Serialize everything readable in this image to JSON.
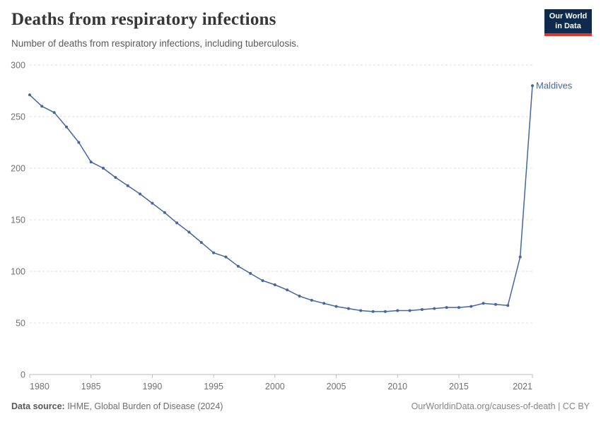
{
  "header": {
    "title": "Deaths from respiratory infections",
    "subtitle": "Number of deaths from respiratory infections, including tuberculosis.",
    "logo": {
      "line1": "Our World",
      "line2": "in Data"
    }
  },
  "chart_data": {
    "type": "line",
    "title": "Deaths from respiratory infections",
    "xlabel": "",
    "ylabel": "",
    "x": [
      1980,
      1981,
      1982,
      1983,
      1984,
      1985,
      1986,
      1987,
      1988,
      1989,
      1990,
      1991,
      1992,
      1993,
      1994,
      1995,
      1996,
      1997,
      1998,
      1999,
      2000,
      2001,
      2002,
      2003,
      2004,
      2005,
      2006,
      2007,
      2008,
      2009,
      2010,
      2011,
      2012,
      2013,
      2014,
      2015,
      2016,
      2017,
      2018,
      2019,
      2020,
      2021
    ],
    "series": [
      {
        "name": "Maldives",
        "color": "#44659e",
        "values": [
          271,
          260,
          254,
          240,
          225,
          206,
          200,
          191,
          183,
          175,
          166,
          157,
          147,
          138,
          128,
          118,
          114,
          105,
          98,
          91,
          87,
          82,
          76,
          72,
          69,
          66,
          64,
          62,
          61,
          61,
          62,
          62,
          63,
          64,
          65,
          65,
          66,
          69,
          68,
          67,
          114,
          280
        ]
      }
    ],
    "xticks": [
      1980,
      1985,
      1990,
      1995,
      2000,
      2005,
      2010,
      2015,
      2021
    ],
    "yticks": [
      0,
      50,
      100,
      150,
      200,
      250,
      300
    ],
    "ylim": [
      0,
      300
    ],
    "grid": "horizontal-dashed",
    "legend_position": "end-of-line-label",
    "end_label": "Maldives"
  },
  "footer": {
    "source_label": "Data source:",
    "source_text": " IHME, Global Burden of Disease (2024)",
    "link_text": "OurWorldinData.org/causes-of-death | CC BY"
  },
  "colors": {
    "line": "#44659e",
    "axis_text": "#707070",
    "grid": "#dddddd",
    "axis_line": "#bbbbbb",
    "logo_bg": "#0e2a4d",
    "logo_accent": "#dc352c"
  }
}
